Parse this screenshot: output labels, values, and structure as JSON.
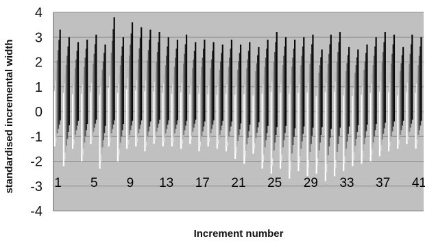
{
  "chart_data": {
    "type": "bar",
    "xlabel": "Increment number",
    "ylabel": "standardised incremental width",
    "ylim": [
      -4,
      4
    ],
    "yticks": [
      4,
      3,
      2,
      1,
      0,
      -1,
      -2,
      -3,
      -4
    ],
    "y_tick_labels": [
      "4",
      "3",
      "2",
      "1",
      "0",
      "-1",
      "-2",
      "-3",
      "-4"
    ],
    "x_tick_values": [
      1,
      5,
      9,
      13,
      17,
      21,
      25,
      29,
      33,
      37,
      41
    ],
    "x_tick_labels": [
      "1",
      "5",
      "9",
      "13",
      "17",
      "21",
      "25",
      "29",
      "33",
      "37",
      "41"
    ],
    "xlim": [
      0.5,
      41.5
    ],
    "grid": true,
    "legend": "none",
    "colors": {
      "plot_background": "#c0c0c0",
      "gridline": "#8a8a8a",
      "axis_line": "#555555",
      "bar_shades": [
        "#0a0a0a",
        "#2a2a2a",
        "#555555",
        "#808080",
        "#b5b5b5",
        "#e3e3e3",
        "#ffffff"
      ]
    },
    "series_note": "Each increment is drawn as a cluster of vertical bars, one per specimen; bar shade darkens with specimen order",
    "increments": [
      {
        "increment": 1,
        "min": -1.4,
        "max": 3.3
      },
      {
        "increment": 2,
        "min": -2.2,
        "max": 3.0
      },
      {
        "increment": 3,
        "min": -1.5,
        "max": 2.8
      },
      {
        "increment": 4,
        "min": -2.0,
        "max": 2.9
      },
      {
        "increment": 5,
        "min": -1.3,
        "max": 3.1
      },
      {
        "increment": 6,
        "min": -2.3,
        "max": 2.7
      },
      {
        "increment": 7,
        "min": -1.4,
        "max": 3.8
      },
      {
        "increment": 8,
        "min": -2.0,
        "max": 3.0
      },
      {
        "increment": 9,
        "min": -1.5,
        "max": 3.6
      },
      {
        "increment": 10,
        "min": -1.4,
        "max": 3.4
      },
      {
        "increment": 11,
        "min": -1.6,
        "max": 3.3
      },
      {
        "increment": 12,
        "min": -1.3,
        "max": 3.2
      },
      {
        "increment": 13,
        "min": -1.4,
        "max": 3.0
      },
      {
        "increment": 14,
        "min": -1.4,
        "max": 2.9
      },
      {
        "increment": 15,
        "min": -1.5,
        "max": 3.1
      },
      {
        "increment": 16,
        "min": -1.3,
        "max": 2.8
      },
      {
        "increment": 17,
        "min": -1.6,
        "max": 2.9
      },
      {
        "increment": 18,
        "min": -1.4,
        "max": 2.8
      },
      {
        "increment": 19,
        "min": -1.5,
        "max": 2.7
      },
      {
        "increment": 20,
        "min": -1.6,
        "max": 2.9
      },
      {
        "increment": 21,
        "min": -1.9,
        "max": 2.7
      },
      {
        "increment": 22,
        "min": -2.1,
        "max": 2.8
      },
      {
        "increment": 23,
        "min": -1.7,
        "max": 2.6
      },
      {
        "increment": 24,
        "min": -2.3,
        "max": 2.9
      },
      {
        "increment": 25,
        "min": -2.5,
        "max": 3.2
      },
      {
        "increment": 26,
        "min": -2.3,
        "max": 3.0
      },
      {
        "increment": 27,
        "min": -2.7,
        "max": 2.9
      },
      {
        "increment": 28,
        "min": -2.4,
        "max": 3.0
      },
      {
        "increment": 29,
        "min": -2.6,
        "max": 3.1
      },
      {
        "increment": 30,
        "min": -2.5,
        "max": 2.5
      },
      {
        "increment": 31,
        "min": -2.8,
        "max": 3.1
      },
      {
        "increment": 32,
        "min": -2.6,
        "max": 3.2
      },
      {
        "increment": 33,
        "min": -2.4,
        "max": 2.6
      },
      {
        "increment": 34,
        "min": -2.2,
        "max": 2.5
      },
      {
        "increment": 35,
        "min": -2.1,
        "max": 2.7
      },
      {
        "increment": 36,
        "min": -2.0,
        "max": 3.0
      },
      {
        "increment": 37,
        "min": -1.8,
        "max": 3.2
      },
      {
        "increment": 38,
        "min": -1.6,
        "max": 3.1
      },
      {
        "increment": 39,
        "min": -1.5,
        "max": 2.6
      },
      {
        "increment": 40,
        "min": -1.3,
        "max": 3.1
      },
      {
        "increment": 41,
        "min": -1.5,
        "max": 3.0
      }
    ]
  }
}
